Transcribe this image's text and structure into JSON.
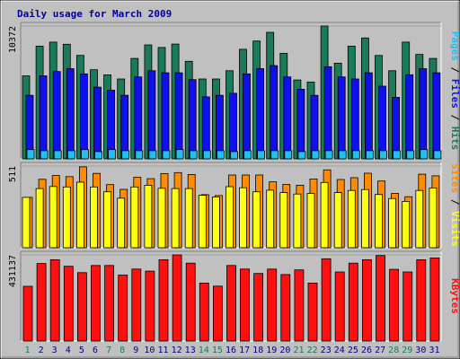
{
  "chart_data": {
    "title": "Daily usage for March 2009",
    "categories": [
      "1",
      "2",
      "3",
      "4",
      "5",
      "6",
      "7",
      "8",
      "9",
      "10",
      "11",
      "12",
      "13",
      "14",
      "15",
      "16",
      "17",
      "18",
      "19",
      "20",
      "21",
      "22",
      "23",
      "24",
      "25",
      "26",
      "27",
      "28",
      "29",
      "30",
      "31"
    ],
    "weekend_days": [
      "1",
      "7",
      "8",
      "14",
      "15",
      "21",
      "22",
      "28",
      "29"
    ],
    "colors": {
      "hits": "#1a7a5a",
      "files": "#1010ee",
      "pages": "#20c0f0",
      "sites": "#ff8c00",
      "visits": "#ffff10",
      "kbytes": "#ff1010",
      "weekend_label": "#1a7a5a",
      "weekday_label": "#000080",
      "background": "#c0c0c0"
    },
    "panels": [
      {
        "type": "bar",
        "ymax_label": "10372",
        "ymax": 10372,
        "legend": [
          "Pages",
          "Files",
          "Hits"
        ],
        "series": [
          {
            "name": "Hits",
            "values": [
              6480,
              8800,
              9120,
              8950,
              8080,
              6960,
              6560,
              6240,
              7840,
              8900,
              8700,
              8960,
              7620,
              6240,
              6240,
              6880,
              8560,
              9200,
              9880,
              8240,
              6160,
              6000,
              10372,
              7470,
              8800,
              9440,
              8070,
              6880,
              9120,
              8160,
              7840
            ]
          },
          {
            "name": "Files",
            "values": [
              4960,
              6480,
              6820,
              7040,
              6640,
              5600,
              5360,
              4960,
              6400,
              6880,
              6720,
              6720,
              6190,
              4840,
              4960,
              5120,
              6640,
              7040,
              7280,
              6400,
              5440,
              4960,
              7200,
              6400,
              6240,
              6720,
              5680,
              4800,
              6570,
              7040,
              6720
            ]
          },
          {
            "name": "Pages",
            "values": [
              720,
              640,
              640,
              640,
              720,
              570,
              720,
              640,
              640,
              640,
              640,
              720,
              640,
              640,
              640,
              570,
              640,
              640,
              640,
              640,
              570,
              640,
              640,
              640,
              640,
              640,
              640,
              640,
              640,
              720,
              640
            ]
          }
        ]
      },
      {
        "type": "bar",
        "ymax_label": "511",
        "ymax": 511,
        "legend": [
          "Sites",
          "Visits"
        ],
        "series": [
          {
            "name": "Sites",
            "values": [
              315,
              428,
              452,
              445,
              506,
              465,
              395,
              365,
              440,
              432,
              464,
              470,
              458,
              332,
              326,
              455,
              455,
              455,
              412,
              396,
              391,
              430,
              487,
              427,
              438,
              466,
              417,
              340,
              319,
              460,
              450
            ]
          },
          {
            "name": "Visits",
            "values": [
              315,
              370,
              383,
              380,
              410,
              380,
              350,
              310,
              380,
              390,
              372,
              370,
              370,
              328,
              317,
              382,
              375,
              350,
              360,
              345,
              336,
              340,
              408,
              345,
              358,
              364,
              333,
              308,
              290,
              358,
              374
            ]
          }
        ]
      },
      {
        "type": "bar",
        "ymax_label": "431137",
        "ymax": 431137,
        "legend": [
          "KBytes"
        ],
        "series": [
          {
            "name": "KBytes",
            "values": [
              274000,
              388000,
              407000,
              374000,
              342000,
              378000,
              378000,
              330000,
              360000,
              350000,
              407000,
              431137,
              390000,
              290000,
              275000,
              378000,
              360000,
              338000,
              360000,
              333000,
              356000,
              290000,
              412000,
              346000,
              390000,
              407000,
              428000,
              359000,
              346000,
              407000,
              416000
            ]
          }
        ]
      }
    ]
  }
}
